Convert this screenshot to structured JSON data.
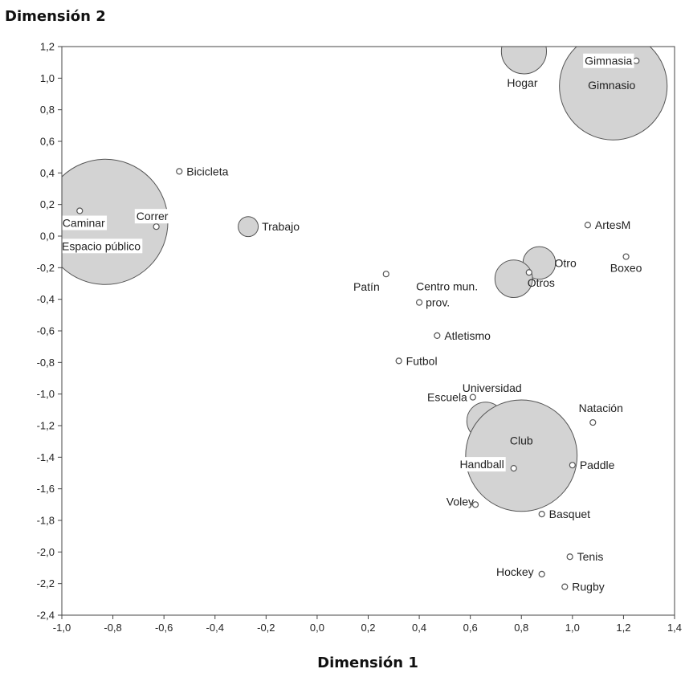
{
  "chart_data": {
    "type": "scatter",
    "title": "",
    "xlabel": "Dimensión 1",
    "ylabel": "Dimensión 2",
    "xlim": [
      -1.0,
      1.4
    ],
    "ylim": [
      -2.4,
      1.2
    ],
    "xticks": [
      -1.0,
      -0.8,
      -0.6,
      -0.4,
      -0.2,
      0.0,
      0.2,
      0.4,
      0.6,
      0.8,
      1.0,
      1.2,
      1.4
    ],
    "xtick_labels": [
      "-1,0",
      "-0,8",
      "-0,6",
      "-0,4",
      "-0,2",
      "0,0",
      "0,2",
      "0,4",
      "0,6",
      "0,8",
      "1,0",
      "1,2",
      "1,4"
    ],
    "yticks": [
      1.2,
      1.0,
      0.8,
      0.6,
      0.4,
      0.2,
      0.0,
      -0.2,
      -0.4,
      -0.6,
      -0.8,
      -1.0,
      -1.2,
      -1.4,
      -1.6,
      -1.8,
      -2.0,
      -2.2,
      -2.4
    ],
    "ytick_labels": [
      "1,2",
      "1,0",
      "0,8",
      "0,6",
      "0,4",
      "0,2",
      "0,0",
      "-0,2",
      "-0,4",
      "-0,6",
      "-0,8",
      "-1,0",
      "-1,2",
      "-1,4",
      "-1,6",
      "-1,8",
      "-2,0",
      "-2,2",
      "-2,4"
    ],
    "grid": false,
    "bubble_fill": "#d3d3d3",
    "point_fill": "#ffffff",
    "stroke": "#555555",
    "bubbles": [
      {
        "label": "Espacio público",
        "x": -0.83,
        "y": 0.09,
        "size": 1.0
      },
      {
        "label": "Hogar",
        "x": 0.81,
        "y": 1.17,
        "size": 0.36
      },
      {
        "label": "Gimnasio",
        "x": 1.16,
        "y": 0.95,
        "size": 0.86
      },
      {
        "label": "Trabajo",
        "x": -0.27,
        "y": 0.06,
        "size": 0.16
      },
      {
        "label": "Otro",
        "x": 0.87,
        "y": -0.17,
        "size": 0.26
      },
      {
        "label": "Otros",
        "x": 0.77,
        "y": -0.27,
        "size": 0.3
      },
      {
        "label": "Universidad",
        "x": 0.66,
        "y": -1.17,
        "size": 0.3
      },
      {
        "label": "Club",
        "x": 0.8,
        "y": -1.39,
        "size": 0.89
      }
    ],
    "points": [
      {
        "label": "Bicicleta",
        "x": -0.54,
        "y": 0.41
      },
      {
        "label": "Caminar",
        "x": -0.93,
        "y": 0.16
      },
      {
        "label": "Correr",
        "x": -0.63,
        "y": 0.06
      },
      {
        "label": "Gimnasia",
        "x": 1.25,
        "y": 1.11
      },
      {
        "label": "ArtesM",
        "x": 1.06,
        "y": 0.07
      },
      {
        "label": "Boxeo",
        "x": 1.21,
        "y": -0.13
      },
      {
        "label": "Patín",
        "x": 0.27,
        "y": -0.24
      },
      {
        "label": "Centro mun.",
        "label_line2": "prov.",
        "x": 0.4,
        "y": -0.42
      },
      {
        "label": "",
        "x": 0.83,
        "y": -0.23
      },
      {
        "label": "Atletismo",
        "x": 0.47,
        "y": -0.63
      },
      {
        "label": "Futbol",
        "x": 0.32,
        "y": -0.79
      },
      {
        "label": "Escuela",
        "x": 0.61,
        "y": -1.02
      },
      {
        "label": "Natación",
        "x": 1.08,
        "y": -1.18
      },
      {
        "label": "Handball",
        "x": 0.77,
        "y": -1.47
      },
      {
        "label": "Paddle",
        "x": 1.0,
        "y": -1.45
      },
      {
        "label": "Voley",
        "x": 0.62,
        "y": -1.7
      },
      {
        "label": "Basquet",
        "x": 0.88,
        "y": -1.76
      },
      {
        "label": "Tenis",
        "x": 0.99,
        "y": -2.03
      },
      {
        "label": "Hockey",
        "x": 0.88,
        "y": -2.14
      },
      {
        "label": "Rugby",
        "x": 0.97,
        "y": -2.22
      }
    ]
  }
}
